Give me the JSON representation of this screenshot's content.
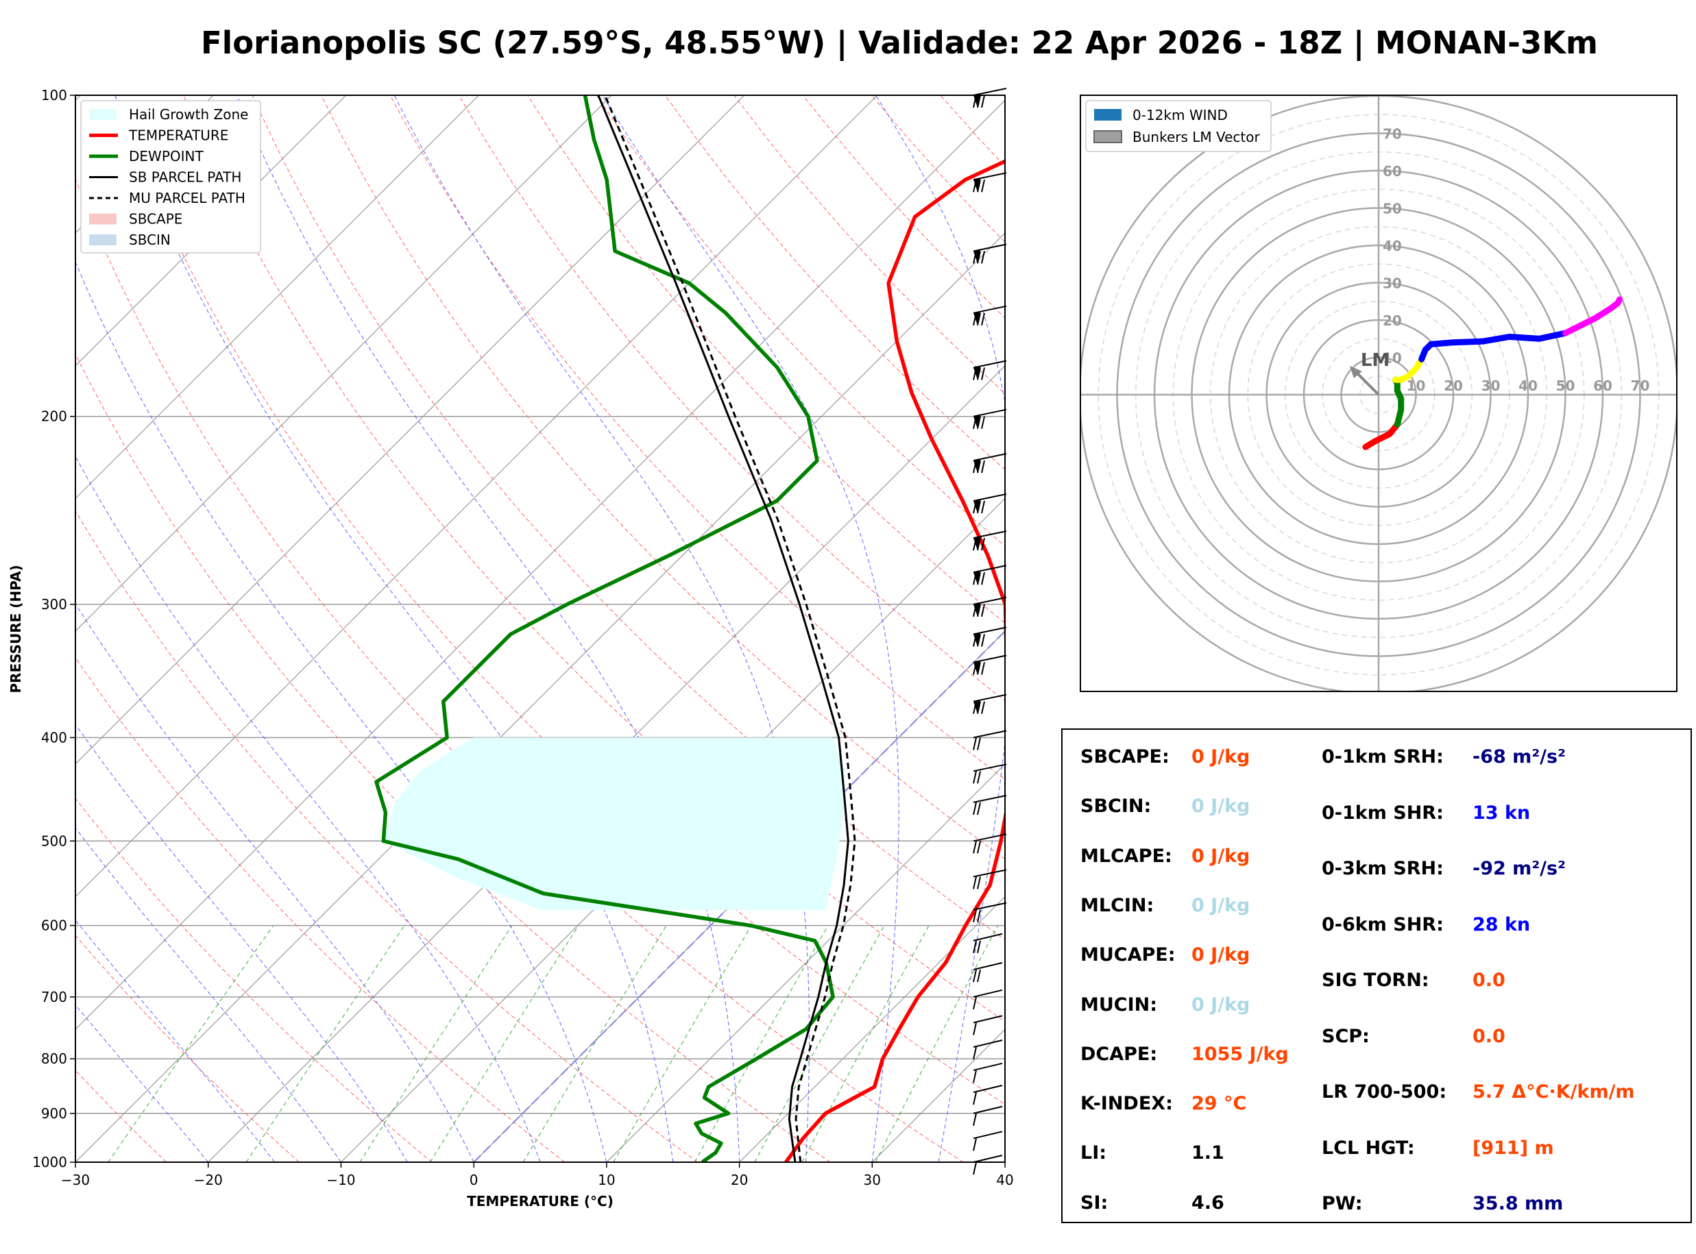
{
  "title": "Florianopolis SC (27.59°S, 48.55°W) | Validade: 22 Apr 2026 - 18Z | MONAN-3Km",
  "skewt": {
    "xlabel": "TEMPERATURE (°C)",
    "ylabel": "PRESSURE (HPA)",
    "x_ticks": [
      "−30",
      "−20",
      "−10",
      "0",
      "10",
      "20",
      "30",
      "40"
    ],
    "y_ticks": [
      "100",
      "200",
      "300",
      "400",
      "500",
      "600",
      "700",
      "800",
      "900",
      "1000"
    ],
    "legend": [
      {
        "label": "Hail Growth Zone",
        "color": "#e0ffff",
        "style": "patch"
      },
      {
        "label": "TEMPERATURE",
        "color": "#ff0000",
        "style": "line"
      },
      {
        "label": "DEWPOINT",
        "color": "#008000",
        "style": "line"
      },
      {
        "label": "SB PARCEL PATH",
        "color": "#000000",
        "style": "line"
      },
      {
        "label": "MU PARCEL PATH",
        "color": "#000000",
        "style": "dashed"
      },
      {
        "label": "SBCAPE",
        "color": "#f8c8c8",
        "style": "patch"
      },
      {
        "label": "SBCIN",
        "color": "#c8dcec",
        "style": "patch"
      }
    ]
  },
  "chart_data": {
    "type": "line",
    "xlabel": "TEMPERATURE (°C)",
    "ylabel": "PRESSURE (HPA)",
    "xlim": [
      -30,
      40
    ],
    "ylim": [
      1000,
      100
    ],
    "y_scale": "log",
    "skew": "temperature isotherms skewed 45°",
    "series": [
      {
        "name": "TEMPERATURE",
        "color": "#ff0000",
        "points": [
          [
            1000,
            23.5
          ],
          [
            950,
            23
          ],
          [
            900,
            22.8
          ],
          [
            870,
            23.8
          ],
          [
            850,
            24.5
          ],
          [
            800,
            23
          ],
          [
            750,
            22
          ],
          [
            700,
            21
          ],
          [
            650,
            20.5
          ],
          [
            600,
            19.2
          ],
          [
            550,
            18
          ],
          [
            500,
            15.5
          ],
          [
            450,
            12.5
          ],
          [
            400,
            8.5
          ],
          [
            350,
            3.5
          ],
          [
            300,
            -2
          ],
          [
            270,
            -7
          ],
          [
            240,
            -13
          ],
          [
            210,
            -20
          ],
          [
            190,
            -25
          ],
          [
            170,
            -30
          ],
          [
            150,
            -35
          ],
          [
            130,
            -38
          ],
          [
            120,
            -37
          ],
          [
            110,
            -33.5
          ],
          [
            100,
            -28
          ]
        ]
      },
      {
        "name": "DEWPOINT",
        "color": "#008000",
        "points": [
          [
            1000,
            17.2
          ],
          [
            980,
            17.5
          ],
          [
            960,
            17.2
          ],
          [
            940,
            15
          ],
          [
            920,
            13.8
          ],
          [
            900,
            15.5
          ],
          [
            870,
            12.5
          ],
          [
            850,
            12
          ],
          [
            800,
            13.5
          ],
          [
            750,
            15
          ],
          [
            700,
            14.6
          ],
          [
            650,
            11.5
          ],
          [
            620,
            9
          ],
          [
            600,
            3
          ],
          [
            560,
            -15
          ],
          [
            520,
            -24
          ],
          [
            500,
            -31
          ],
          [
            470,
            -33
          ],
          [
            440,
            -36
          ],
          [
            400,
            -34
          ],
          [
            370,
            -37
          ],
          [
            350,
            -37
          ],
          [
            320,
            -37
          ],
          [
            300,
            -35
          ],
          [
            270,
            -31
          ],
          [
            240,
            -27
          ],
          [
            220,
            -27
          ],
          [
            200,
            -31
          ],
          [
            180,
            -37
          ],
          [
            160,
            -45
          ],
          [
            150,
            -50
          ],
          [
            140,
            -58
          ],
          [
            120,
            -64
          ],
          [
            110,
            -68
          ],
          [
            100,
            -72
          ]
        ]
      },
      {
        "name": "SB PARCEL PATH",
        "color": "#000000",
        "points": [
          [
            1000,
            24.2
          ],
          [
            911,
            20.5
          ],
          [
            850,
            18.3
          ],
          [
            800,
            16.8
          ],
          [
            750,
            15.2
          ],
          [
            700,
            13.5
          ],
          [
            650,
            11.5
          ],
          [
            600,
            9.5
          ],
          [
            550,
            7
          ],
          [
            500,
            4
          ],
          [
            450,
            0
          ],
          [
            400,
            -4.5
          ],
          [
            350,
            -10.5
          ],
          [
            300,
            -17.5
          ],
          [
            250,
            -26
          ],
          [
            200,
            -37
          ],
          [
            150,
            -51
          ],
          [
            120,
            -62
          ],
          [
            100,
            -71
          ]
        ]
      },
      {
        "name": "MU PARCEL PATH",
        "color": "#000000",
        "dashed": true,
        "points": [
          [
            1000,
            24.6
          ],
          [
            911,
            21
          ],
          [
            850,
            18.8
          ],
          [
            800,
            17.3
          ],
          [
            750,
            15.7
          ],
          [
            700,
            14
          ],
          [
            650,
            12
          ],
          [
            600,
            10
          ],
          [
            550,
            7.5
          ],
          [
            500,
            4.5
          ],
          [
            450,
            0.5
          ],
          [
            400,
            -4
          ],
          [
            350,
            -10
          ],
          [
            300,
            -17
          ],
          [
            250,
            -25.5
          ],
          [
            200,
            -36.5
          ],
          [
            150,
            -50.5
          ],
          [
            120,
            -61.5
          ],
          [
            100,
            -70.5
          ]
        ]
      }
    ],
    "hail_growth_zone": {
      "top_hpa": 400,
      "bottom_hpa": 580,
      "temp_range_c": [
        -30,
        -10
      ]
    }
  },
  "hodograph": {
    "legend": [
      {
        "label": "0-12km WIND",
        "color": "#1f77b4"
      },
      {
        "label": "Bunkers LM Vector",
        "color": "#a0a0a0"
      }
    ],
    "ring_labels": [
      "10",
      "20",
      "30",
      "40",
      "50",
      "60",
      "70"
    ],
    "lm_label": "LM",
    "segments": [
      {
        "color": "#ff0000",
        "points": [
          [
            -3.5,
            -14
          ],
          [
            -1,
            -12.5
          ],
          [
            3,
            -10.5
          ],
          [
            5,
            -8
          ]
        ]
      },
      {
        "color": "#008000",
        "points": [
          [
            5,
            -8
          ],
          [
            6,
            -4
          ],
          [
            6,
            -1
          ],
          [
            5,
            1
          ],
          [
            5,
            3
          ],
          [
            4.5,
            4
          ]
        ]
      },
      {
        "color": "#ffff00",
        "points": [
          [
            4.5,
            4
          ],
          [
            6,
            4
          ],
          [
            8,
            5
          ],
          [
            10,
            7
          ],
          [
            11.5,
            9.5
          ]
        ]
      },
      {
        "color": "#0000ff",
        "points": [
          [
            11.5,
            9.5
          ],
          [
            12.5,
            12
          ],
          [
            14,
            13.5
          ],
          [
            20,
            14
          ],
          [
            28,
            14.3
          ],
          [
            35,
            15.5
          ],
          [
            43,
            15
          ],
          [
            50,
            16.5
          ]
        ]
      },
      {
        "color": "#ff00ff",
        "points": [
          [
            50,
            16.5
          ],
          [
            54,
            18.5
          ],
          [
            58,
            20.5
          ],
          [
            62,
            23
          ],
          [
            64,
            24.5
          ],
          [
            64.5,
            25.5
          ]
        ]
      }
    ],
    "lm_vector": [
      -7,
      7
    ]
  },
  "parameters": {
    "left": [
      {
        "label": "SBCAPE:",
        "value": "0 J/kg",
        "color": "#ff4500"
      },
      {
        "label": "SBCIN:",
        "value": "0 J/kg",
        "color": "#add8e6"
      },
      {
        "label": "MLCAPE:",
        "value": "0 J/kg",
        "color": "#ff4500"
      },
      {
        "label": "MLCIN:",
        "value": "0 J/kg",
        "color": "#add8e6"
      },
      {
        "label": "MUCAPE:",
        "value": "0 J/kg",
        "color": "#ff4500"
      },
      {
        "label": "MUCIN:",
        "value": "0 J/kg",
        "color": "#add8e6"
      },
      {
        "label": "DCAPE:",
        "value": "1055 J/kg",
        "color": "#ff4500"
      },
      {
        "label": "K-INDEX:",
        "value": "29 °C",
        "color": "#ff4500"
      },
      {
        "label": "LI:",
        "value": "1.1",
        "color": "#000000"
      },
      {
        "label": "SI:",
        "value": "4.6",
        "color": "#000000"
      }
    ],
    "right": [
      {
        "label": "0-1km SRH:",
        "value": "-68 m²/s²",
        "color": "#000080"
      },
      {
        "label": "0-1km SHR:",
        "value": "13 kn",
        "color": "#0000ff"
      },
      {
        "label": "0-3km SRH:",
        "value": "-92 m²/s²",
        "color": "#000080"
      },
      {
        "label": "0-6km SHR:",
        "value": "28 kn",
        "color": "#0000ff"
      },
      {
        "label": "SIG TORN:",
        "value": "0.0",
        "color": "#ff4500"
      },
      {
        "label": "SCP:",
        "value": "0.0",
        "color": "#ff4500"
      },
      {
        "label": "LR 700-500:",
        "value": "5.7 Δ°C·K/km/m",
        "color": "#ff4500"
      },
      {
        "label": "LCL HGT:",
        "value": "[911] m",
        "color": "#ff4500"
      },
      {
        "label": "PW:",
        "value": "35.8 mm",
        "color": "#000080"
      }
    ]
  }
}
